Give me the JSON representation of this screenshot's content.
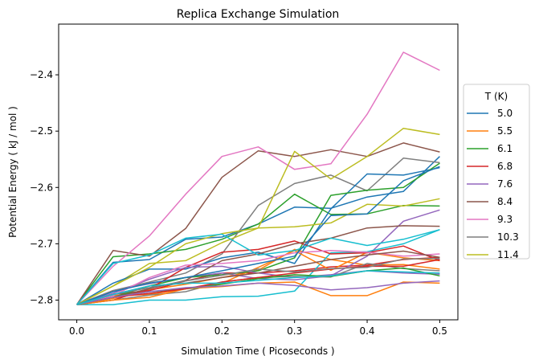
{
  "chart_data": {
    "type": "line",
    "title": "Replica Exchange Simulation",
    "xlabel": "Simulation Time ( Picoseconds )",
    "ylabel": "Potential Energy ( kJ / mol )",
    "xlim": [
      -0.025,
      0.525
    ],
    "ylim": [
      -2.835,
      -2.31
    ],
    "xticks": [
      0.0,
      0.1,
      0.2,
      0.3,
      0.4,
      0.5
    ],
    "xtick_labels": [
      "0.0",
      "0.1",
      "0.2",
      "0.3",
      "0.4",
      "0.5"
    ],
    "yticks": [
      -2.8,
      -2.7,
      -2.6,
      -2.5,
      -2.4
    ],
    "ytick_labels": [
      "−2.8",
      "−2.7",
      "−2.6",
      "−2.5",
      "−2.4"
    ],
    "grid": false,
    "legend": {
      "title": "T (K)",
      "placement": "outside-right"
    },
    "x": [
      0.0,
      0.05,
      0.1,
      0.15,
      0.2,
      0.25,
      0.3,
      0.35,
      0.4,
      0.45,
      0.5
    ],
    "series": [
      {
        "name": "5.0",
        "color": "#1f77b4",
        "values": [
          -2.808,
          -2.733,
          -2.728,
          -2.692,
          -2.688,
          -2.665,
          -2.635,
          -2.637,
          -2.617,
          -2.607,
          -2.545
        ]
      },
      {
        "name": "5.5",
        "color": "#ff7f0e",
        "values": [
          -2.808,
          -2.797,
          -2.782,
          -2.772,
          -2.76,
          -2.747,
          -2.71,
          -2.728,
          -2.738,
          -2.737,
          -2.745
        ]
      },
      {
        "name": "6.1",
        "color": "#2ca02c",
        "values": [
          -2.808,
          -2.723,
          -2.718,
          -2.71,
          -2.692,
          -2.665,
          -2.612,
          -2.648,
          -2.647,
          -2.632,
          -2.633
        ]
      },
      {
        "name": "6.8",
        "color": "#d62728",
        "values": [
          -2.808,
          -2.79,
          -2.783,
          -2.766,
          -2.752,
          -2.752,
          -2.748,
          -2.741,
          -2.738,
          -2.728,
          -2.724
        ]
      },
      {
        "name": "7.6",
        "color": "#9467bd",
        "values": [
          -2.808,
          -2.783,
          -2.771,
          -2.76,
          -2.752,
          -2.762,
          -2.764,
          -2.757,
          -2.722,
          -2.66,
          -2.64
        ]
      },
      {
        "name": "8.4",
        "color": "#8c564b",
        "values": [
          -2.808,
          -2.712,
          -2.722,
          -2.673,
          -2.582,
          -2.535,
          -2.545,
          -2.533,
          -2.545,
          -2.521,
          -2.537
        ]
      },
      {
        "name": "9.3",
        "color": "#e377c2",
        "values": [
          -2.808,
          -2.74,
          -2.686,
          -2.612,
          -2.545,
          -2.528,
          -2.568,
          -2.558,
          -2.47,
          -2.36,
          -2.392
        ]
      },
      {
        "name": "10.3",
        "color": "#7f7f7f",
        "values": [
          -2.808,
          -2.783,
          -2.768,
          -2.752,
          -2.718,
          -2.632,
          -2.593,
          -2.578,
          -2.606,
          -2.548,
          -2.556
        ]
      },
      {
        "name": "11.4",
        "color": "#bcbd22",
        "values": [
          -2.808,
          -2.775,
          -2.735,
          -2.73,
          -2.698,
          -2.672,
          -2.536,
          -2.585,
          -2.545,
          -2.495,
          -2.506
        ]
      },
      {
        "name": "",
        "color": "#17becf",
        "values": [
          -2.808,
          -2.808,
          -2.8,
          -2.8,
          -2.794,
          -2.793,
          -2.784,
          -2.716,
          -2.714,
          -2.7,
          -2.675
        ]
      },
      {
        "name": "",
        "color": "#1f77b4",
        "values": [
          -2.808,
          -2.77,
          -2.745,
          -2.745,
          -2.725,
          -2.715,
          -2.735,
          -2.638,
          -2.576,
          -2.578,
          -2.565
        ]
      },
      {
        "name": "",
        "color": "#ff7f0e",
        "values": [
          -2.808,
          -2.792,
          -2.79,
          -2.78,
          -2.77,
          -2.742,
          -2.712,
          -2.747,
          -2.715,
          -2.725,
          -2.73
        ]
      },
      {
        "name": "",
        "color": "#2ca02c",
        "values": [
          -2.808,
          -2.795,
          -2.775,
          -2.76,
          -2.755,
          -2.748,
          -2.725,
          -2.614,
          -2.605,
          -2.6,
          -2.557
        ]
      },
      {
        "name": "",
        "color": "#d62728",
        "values": [
          -2.808,
          -2.8,
          -2.78,
          -2.742,
          -2.715,
          -2.71,
          -2.695,
          -2.718,
          -2.716,
          -2.704,
          -2.73
        ]
      },
      {
        "name": "",
        "color": "#9467bd",
        "values": [
          -2.808,
          -2.788,
          -2.763,
          -2.742,
          -2.74,
          -2.752,
          -2.76,
          -2.755,
          -2.748,
          -2.752,
          -2.754
        ]
      },
      {
        "name": "",
        "color": "#8c564b",
        "values": [
          -2.808,
          -2.795,
          -2.78,
          -2.765,
          -2.73,
          -2.718,
          -2.7,
          -2.69,
          -2.672,
          -2.668,
          -2.669
        ]
      },
      {
        "name": "",
        "color": "#e377c2",
        "values": [
          -2.808,
          -2.792,
          -2.76,
          -2.738,
          -2.735,
          -2.73,
          -2.716,
          -2.712,
          -2.715,
          -2.722,
          -2.718
        ]
      },
      {
        "name": "",
        "color": "#7f7f7f",
        "values": [
          -2.808,
          -2.8,
          -2.791,
          -2.785,
          -2.768,
          -2.76,
          -2.758,
          -2.759,
          -2.735,
          -2.744,
          -2.748
        ]
      },
      {
        "name": "",
        "color": "#bcbd22",
        "values": [
          -2.808,
          -2.775,
          -2.742,
          -2.7,
          -2.682,
          -2.672,
          -2.67,
          -2.663,
          -2.63,
          -2.633,
          -2.62
        ]
      },
      {
        "name": "",
        "color": "#17becf",
        "values": [
          -2.808,
          -2.735,
          -2.72,
          -2.69,
          -2.683,
          -2.72,
          -2.712,
          -2.69,
          -2.703,
          -2.692,
          -2.675
        ]
      },
      {
        "name": "",
        "color": "#1f77b4",
        "values": [
          -2.808,
          -2.785,
          -2.77,
          -2.76,
          -2.748,
          -2.735,
          -2.722,
          -2.65,
          -2.647,
          -2.588,
          -2.563
        ]
      },
      {
        "name": "",
        "color": "#ff7f0e",
        "values": [
          -2.808,
          -2.8,
          -2.795,
          -2.78,
          -2.776,
          -2.77,
          -2.768,
          -2.792,
          -2.792,
          -2.768,
          -2.77
        ]
      },
      {
        "name": "",
        "color": "#2ca02c",
        "values": [
          -2.808,
          -2.795,
          -2.785,
          -2.78,
          -2.772,
          -2.762,
          -2.755,
          -2.758,
          -2.748,
          -2.743,
          -2.757
        ]
      },
      {
        "name": "",
        "color": "#d62728",
        "values": [
          -2.808,
          -2.795,
          -2.788,
          -2.78,
          -2.768,
          -2.76,
          -2.752,
          -2.745,
          -2.74,
          -2.74,
          -2.728
        ]
      },
      {
        "name": "",
        "color": "#9467bd",
        "values": [
          -2.808,
          -2.795,
          -2.785,
          -2.778,
          -2.775,
          -2.77,
          -2.774,
          -2.782,
          -2.778,
          -2.77,
          -2.766
        ]
      },
      {
        "name": "",
        "color": "#8c564b",
        "values": [
          -2.808,
          -2.79,
          -2.775,
          -2.77,
          -2.76,
          -2.752,
          -2.74,
          -2.728,
          -2.72,
          -2.713,
          -2.724
        ]
      },
      {
        "name": "",
        "color": "#7f7f7f",
        "values": [
          -2.808,
          -2.79,
          -2.778,
          -2.766,
          -2.756,
          -2.745,
          -2.75,
          -2.744,
          -2.742,
          -2.727,
          -2.726
        ]
      },
      {
        "name": "",
        "color": "#17becf",
        "values": [
          -2.808,
          -2.79,
          -2.775,
          -2.77,
          -2.77,
          -2.765,
          -2.76,
          -2.757,
          -2.748,
          -2.75,
          -2.752
        ]
      }
    ]
  }
}
